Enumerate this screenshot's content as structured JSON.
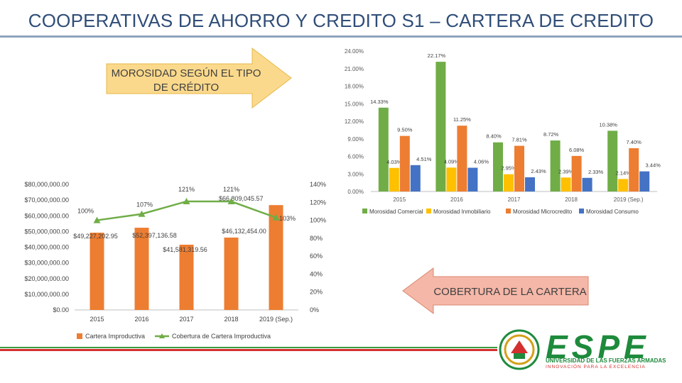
{
  "title": "COOPERATIVAS DE AHORRO Y CREDITO S1 – CARTERA DE CREDITO",
  "colors": {
    "comercial": "#70ad47",
    "inmobiliario": "#ffc000",
    "microcredito": "#ed7d31",
    "consumo": "#4472c4",
    "improductiva": "#ed7d31",
    "cobertura": "#70ad47",
    "arrow_fill": "#fbd98c",
    "arrow2_fill": "#f5b7a8"
  },
  "arrows": {
    "morosidad": "MOROSIDAD SEGÚN EL TIPO DE CRÉDITO",
    "cobertura": "COBERTURA DE LA CARTERA"
  },
  "logo": {
    "word": "ESPE",
    "line1": "UNIVERSIDAD DE LAS FUERZAS ARMADAS",
    "line2": "INNOVACIÓN PARA LA EXCELENCIA"
  },
  "chart_data": [
    {
      "type": "bar",
      "title": "",
      "categories": [
        "2015",
        "2016",
        "2017",
        "2018",
        "2019 (Sep.)"
      ],
      "ylim": [
        0,
        24
      ],
      "yticks": [
        "0.00%",
        "3.00%",
        "6.00%",
        "9.00%",
        "12.00%",
        "15.00%",
        "18.00%",
        "21.00%",
        "24.00%"
      ],
      "legend_position": "bottom",
      "series": [
        {
          "name": "Morosidad Comercial",
          "values": [
            14.33,
            22.17,
            8.4,
            8.72,
            10.38
          ],
          "labels": [
            "14.33%",
            "22.17%",
            "8.40%",
            "8.72%",
            "10.38%"
          ]
        },
        {
          "name": "Morosidad Inmobiliario",
          "values": [
            4.03,
            4.09,
            2.95,
            2.39,
            2.14
          ],
          "labels": [
            "4.03%",
            "4.09%",
            "2.95%",
            "2.39%",
            "2.14%"
          ]
        },
        {
          "name": "Morosidad Microcredito",
          "values": [
            9.5,
            11.25,
            7.81,
            6.08,
            7.4
          ],
          "labels": [
            "9.50%",
            "11.25%",
            "7.81%",
            "6.08%",
            "7.40%"
          ]
        },
        {
          "name": "Morosidad Consumo",
          "values": [
            4.51,
            4.06,
            2.43,
            2.33,
            3.44
          ],
          "labels": [
            "4.51%",
            "4.06%",
            "2.43%",
            "2.33%",
            "3.44%"
          ]
        }
      ]
    },
    {
      "type": "bar+line",
      "title": "",
      "categories": [
        "2015",
        "2016",
        "2017",
        "2018",
        "2019 (Sep.)"
      ],
      "ylim": [
        0,
        80000000
      ],
      "yticks": [
        "$0.00",
        "$10,000,000.00",
        "$20,000,000.00",
        "$30,000,000.00",
        "$40,000,000.00",
        "$50,000,000.00",
        "$60,000,000.00",
        "$70,000,000.00",
        "$80,000,000.00"
      ],
      "y2lim": [
        0,
        140
      ],
      "y2ticks": [
        "0%",
        "20%",
        "40%",
        "60%",
        "80%",
        "100%",
        "120%",
        "140%"
      ],
      "legend_position": "bottom",
      "series": [
        {
          "name": "Cartera Improductiva",
          "axis": "left",
          "values": [
            49227202.95,
            52397136.58,
            41581319.56,
            46132454.0,
            66809045.57
          ],
          "labels": [
            "$49,227,202.95",
            "$52,397,136.58",
            "$41,581,319.56",
            "$46,132,454.00",
            "$66,809,045.57"
          ]
        },
        {
          "name": "Cobertura de Cartera Improductiva",
          "axis": "right",
          "values": [
            100,
            107,
            121,
            121,
            103
          ],
          "labels": [
            "100%",
            "107%",
            "121%",
            "121%",
            "103%"
          ]
        }
      ]
    }
  ]
}
